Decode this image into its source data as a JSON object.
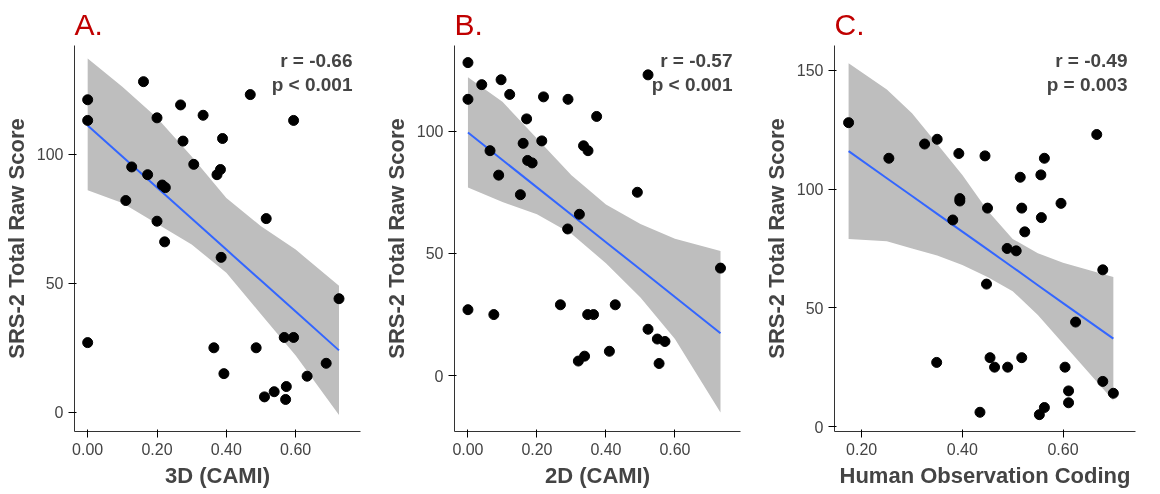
{
  "chart_data": [
    {
      "type": "scatter",
      "title": "A.",
      "xlabel": "3D (CAMI)",
      "ylabel": "SRS-2 Total Raw Score",
      "annotations": [
        "r = -0.66",
        "p < 0.001"
      ],
      "xlim": [
        -0.038,
        0.787
      ],
      "ylim": [
        -7.4,
        142
      ],
      "xticks": [
        {
          "value": 0,
          "label": "0.00"
        },
        {
          "value": 0.2,
          "label": "0.20"
        },
        {
          "value": 0.4,
          "label": "0.40"
        },
        {
          "value": 0.6,
          "label": "0.60"
        }
      ],
      "yticks": [
        0,
        50,
        100
      ],
      "grid": false,
      "series": [
        {
          "marker": "circle",
          "color": "#000000",
          "x": [
            0,
            0,
            0.161,
            0.268,
            0.2,
            0.333,
            0.469,
            0.594,
            0.275,
            0.389,
            0.306,
            0.127,
            0.173,
            0.383,
            0.373,
            0.215,
            0.224,
            0.11,
            0.2,
            0.222,
            0.515,
            0.385,
            0.725,
            0,
            0.364,
            0.486,
            0.567,
            0.594,
            0.688,
            0.393,
            0.633,
            0.573,
            0.538,
            0.51,
            0.571
          ],
          "values": [
            121,
            113,
            128,
            119,
            114,
            115,
            123,
            113,
            105,
            106,
            96,
            95,
            92,
            94,
            92,
            88,
            87,
            82,
            74,
            66,
            75,
            60,
            44,
            27,
            25,
            25,
            29,
            29,
            19,
            15,
            14,
            10,
            8,
            6,
            5
          ]
        },
        {
          "type": "line",
          "color": "#3366ff",
          "x": [
            0,
            0.1,
            0.2,
            0.3,
            0.4,
            0.5,
            0.6,
            0.725
          ],
          "values": [
            111,
            99,
            87,
            75,
            63,
            51,
            39,
            24
          ],
          "lower": [
            86,
            81,
            73,
            65,
            54,
            38,
            22,
            -1
          ],
          "upper": [
            137,
            126,
            114,
            99,
            83,
            72,
            63,
            49
          ]
        }
      ]
    },
    {
      "type": "scatter",
      "title": "B.",
      "xlabel": "2D (CAMI)",
      "ylabel": "SRS-2 Total Raw Score",
      "annotations": [
        "r = -0.57",
        "p < 0.001"
      ],
      "xlim": [
        -0.039,
        0.79
      ],
      "ylim": [
        -22.8,
        135
      ],
      "xticks": [
        {
          "value": 0,
          "label": "0.00"
        },
        {
          "value": 0.2,
          "label": "0.20"
        },
        {
          "value": 0.4,
          "label": "0.40"
        },
        {
          "value": 0.6,
          "label": "0.60"
        }
      ],
      "yticks": [
        0,
        50,
        100
      ],
      "grid": false,
      "series": [
        {
          "marker": "circle",
          "color": "#000000",
          "x": [
            0,
            0,
            0.04,
            0.096,
            0.121,
            0.219,
            0.29,
            0.522,
            0.17,
            0.373,
            0.064,
            0.16,
            0.214,
            0.335,
            0.348,
            0.173,
            0.186,
            0.089,
            0.152,
            0.491,
            0.323,
            0.289,
            0.732,
            0,
            0.075,
            0.268,
            0.427,
            0.347,
            0.364,
            0.522,
            0.549,
            0.571,
            0.41,
            0.338,
            0.32,
            0.554
          ],
          "values": [
            128,
            113,
            119,
            121,
            115,
            114,
            113,
            123,
            105,
            106,
            92,
            95,
            96,
            94,
            92,
            88,
            87,
            82,
            74,
            75,
            66,
            60,
            44,
            27,
            25,
            29,
            29,
            25,
            25,
            19,
            15,
            14,
            10,
            8,
            6,
            5
          ]
        },
        {
          "type": "line",
          "color": "#3366ff",
          "x": [
            0,
            0.1,
            0.2,
            0.3,
            0.4,
            0.5,
            0.6,
            0.732
          ],
          "values": [
            99.4,
            88.2,
            77,
            65.8,
            54.6,
            43.4,
            32.2,
            17.4
          ],
          "lower": [
            77,
            71,
            66,
            58,
            46,
            32,
            15,
            -15
          ],
          "upper": [
            122,
            112,
            97,
            82,
            70,
            62,
            56,
            51
          ]
        }
      ]
    },
    {
      "type": "scatter",
      "title": "C.",
      "xlabel": "Human Observation Coding",
      "ylabel": "SRS-2 Total Raw Score",
      "annotations": [
        "r = -0.49",
        "p = 0.003"
      ],
      "xlim": [
        0.146,
        0.744
      ],
      "ylim": [
        -2.1,
        160.5
      ],
      "xticks": [
        {
          "value": 0.2,
          "label": "0.20"
        },
        {
          "value": 0.4,
          "label": "0.40"
        },
        {
          "value": 0.6,
          "label": "0.60"
        }
      ],
      "yticks": [
        0,
        50,
        100,
        150
      ],
      "grid": false,
      "series": [
        {
          "marker": "circle",
          "color": "#000000",
          "x": [
            0.174,
            0.254,
            0.325,
            0.35,
            0.393,
            0.445,
            0.667,
            0.563,
            0.515,
            0.556,
            0.395,
            0.395,
            0.45,
            0.518,
            0.596,
            0.381,
            0.557,
            0.524,
            0.489,
            0.507,
            0.679,
            0.448,
            0.625,
            0.349,
            0.455,
            0.518,
            0.464,
            0.49,
            0.604,
            0.679,
            0.611,
            0.7,
            0.611,
            0.563,
            0.435,
            0.553
          ],
          "values": [
            128,
            113,
            119,
            121,
            115,
            114,
            123,
            113,
            105,
            106,
            96,
            95,
            92,
            92,
            94,
            87,
            88,
            82,
            75,
            74,
            66,
            60,
            44,
            27,
            29,
            29,
            25,
            25,
            25,
            19,
            15,
            14,
            10,
            8,
            6,
            5
          ]
        },
        {
          "type": "line",
          "color": "#3366ff",
          "x": [
            0.174,
            0.25,
            0.3,
            0.35,
            0.4,
            0.45,
            0.5,
            0.55,
            0.6,
            0.7
          ],
          "values": [
            116,
            104.6,
            97.1,
            89.6,
            82.1,
            74.6,
            67.1,
            59.5,
            52,
            37
          ],
          "lower": [
            79,
            78,
            75,
            72,
            68,
            63,
            57,
            47,
            35,
            11
          ],
          "upper": [
            153,
            142,
            132,
            119,
            106,
            91,
            79,
            73,
            69,
            63
          ]
        }
      ]
    }
  ]
}
